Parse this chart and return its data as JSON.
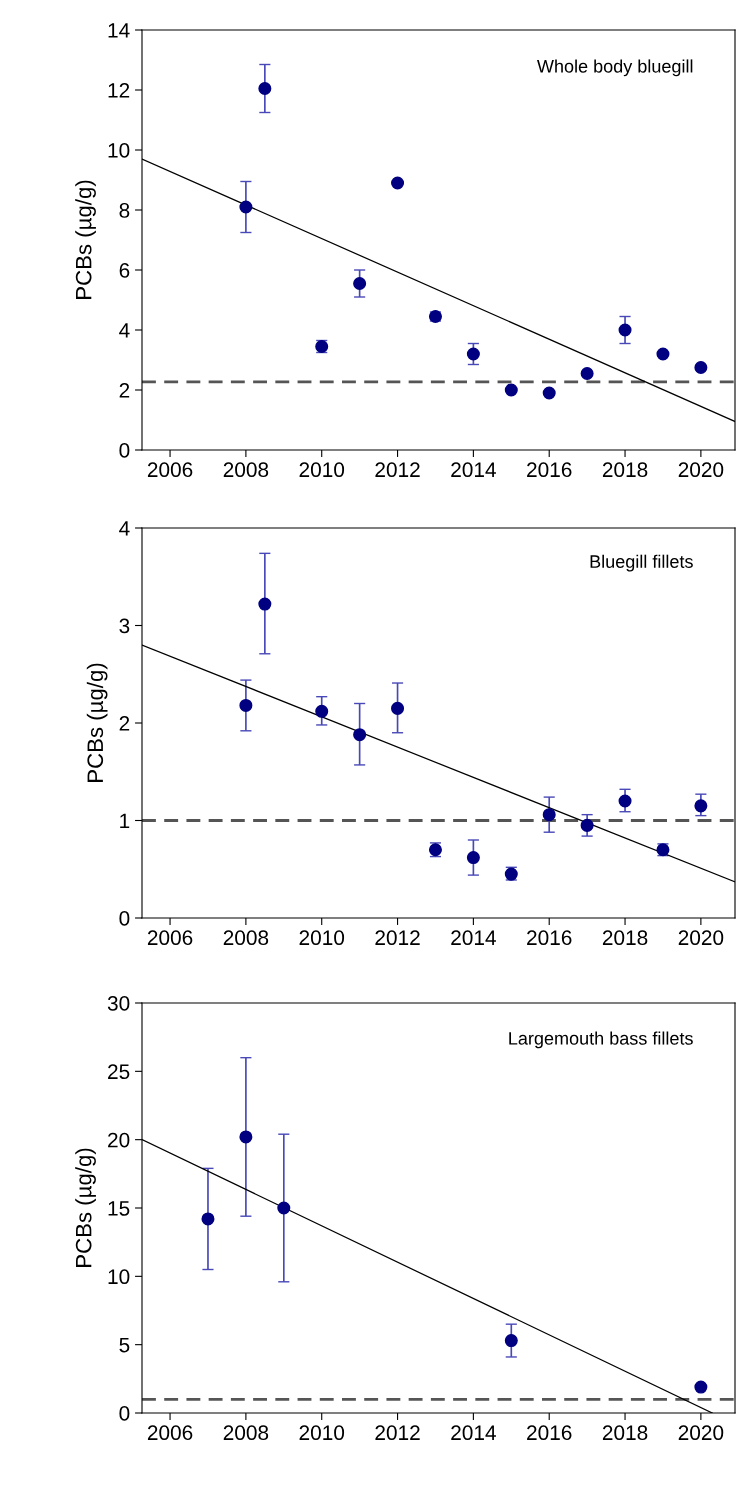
{
  "chart_data": [
    {
      "type": "scatter",
      "annotations": [
        "Whole body bluegill"
      ],
      "ylabel": "PCBs (µg/g)",
      "xlim": [
        2005.26,
        2020.9
      ],
      "ylim": [
        0,
        14
      ],
      "xticks": [
        2006,
        2008,
        2010,
        2012,
        2014,
        2016,
        2018,
        2020
      ],
      "yticks": [
        0,
        2,
        4,
        6,
        8,
        10,
        12,
        14
      ],
      "grid": false,
      "legend": false,
      "marker": "circle",
      "ref_lines": [
        {
          "axis": "y",
          "value": 2.27,
          "color": "#555555",
          "line_style": "dashed"
        }
      ],
      "series": [
        {
          "color": "#000080",
          "x": [
            2008,
            2008.5,
            2010,
            2011,
            2012,
            2013,
            2014,
            2015,
            2016,
            2017,
            2018,
            2019,
            2020
          ],
          "values": [
            8.1,
            12.05,
            3.45,
            5.55,
            8.9,
            4.45,
            3.2,
            2.0,
            1.9,
            2.55,
            4.0,
            3.2,
            2.75
          ],
          "errors": [
            0.85,
            0.8,
            0.2,
            0.45,
            null,
            0.15,
            0.35,
            null,
            null,
            null,
            0.45,
            null,
            null
          ]
        },
        {
          "type": "line",
          "marker": "none",
          "color": "#000000",
          "x": [
            2005.26,
            2020.9
          ],
          "values": [
            9.7,
            0.95
          ]
        }
      ]
    },
    {
      "type": "scatter",
      "annotations": [
        "Bluegill fillets"
      ],
      "ylabel": "PCBs (µg/g)",
      "xlim": [
        2005.26,
        2020.9
      ],
      "ylim": [
        0,
        4
      ],
      "xticks": [
        2006,
        2008,
        2010,
        2012,
        2014,
        2016,
        2018,
        2020
      ],
      "yticks": [
        0,
        1,
        2,
        3,
        4
      ],
      "grid": false,
      "legend": false,
      "marker": "circle",
      "ref_lines": [
        {
          "axis": "y",
          "value": 1.0,
          "color": "#555555",
          "line_style": "dashed"
        }
      ],
      "series": [
        {
          "color": "#000080",
          "x": [
            2008,
            2008.5,
            2010,
            2011,
            2012,
            2013,
            2014,
            2015,
            2016,
            2017,
            2018,
            2019,
            2020
          ],
          "values": [
            2.18,
            3.22,
            2.12,
            1.88,
            2.15,
            0.7,
            0.62,
            0.45,
            1.06,
            0.95,
            1.2,
            0.7,
            1.15
          ],
          "errors": [
            [
              1.92,
              2.44
            ],
            [
              2.71,
              3.74
            ],
            [
              1.98,
              2.27
            ],
            [
              1.57,
              2.2
            ],
            [
              1.9,
              2.41
            ],
            [
              0.63,
              0.77
            ],
            [
              0.44,
              0.8
            ],
            [
              0.39,
              0.52
            ],
            [
              0.88,
              1.24
            ],
            [
              0.84,
              1.06
            ],
            [
              1.09,
              1.32
            ],
            [
              0.64,
              0.76
            ],
            [
              1.05,
              1.27
            ]
          ]
        },
        {
          "type": "line",
          "marker": "none",
          "color": "#000000",
          "x": [
            2005.26,
            2020.9
          ],
          "values": [
            2.8,
            0.37
          ]
        }
      ]
    },
    {
      "type": "scatter",
      "annotations": [
        "Largemouth bass fillets"
      ],
      "ylabel": "PCBs (µg/g)",
      "xlim": [
        2005.26,
        2020.9
      ],
      "ylim": [
        0,
        30
      ],
      "xticks": [
        2006,
        2008,
        2010,
        2012,
        2014,
        2016,
        2018,
        2020
      ],
      "yticks": [
        0,
        5,
        10,
        15,
        20,
        25,
        30
      ],
      "grid": false,
      "legend": false,
      "marker": "circle",
      "ref_lines": [
        {
          "axis": "y",
          "value": 1.0,
          "color": "#555555",
          "line_style": "dashed"
        }
      ],
      "series": [
        {
          "color": "#000080",
          "x": [
            2007,
            2008,
            2009,
            2015,
            2020
          ],
          "values": [
            14.2,
            20.2,
            15.0,
            5.3,
            1.9
          ],
          "errors": [
            [
              10.5,
              17.9
            ],
            [
              14.4,
              26.0
            ],
            [
              9.6,
              20.4
            ],
            [
              4.1,
              6.5
            ],
            null
          ]
        },
        {
          "type": "line",
          "marker": "none",
          "color": "#000000",
          "x": [
            2005.26,
            2020.3
          ],
          "values": [
            20.0,
            0
          ]
        }
      ]
    }
  ]
}
